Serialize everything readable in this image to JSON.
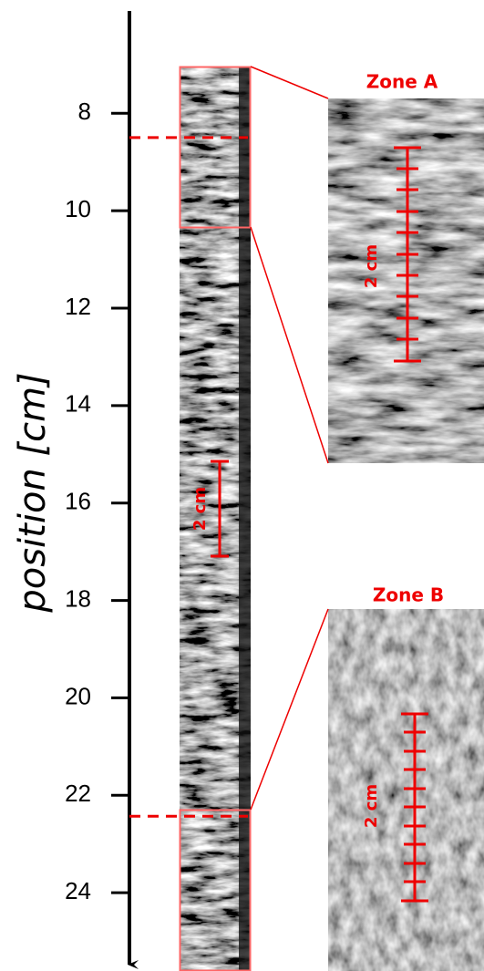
{
  "chart_data": {
    "type": "core",
    "ylabel": "position [cm]",
    "ylim": [
      5.9,
      25.55
    ],
    "yticks": [
      8,
      10,
      12,
      14,
      16,
      18,
      20,
      22,
      24
    ],
    "dashed_lines": [
      8.5,
      22.43
    ],
    "zones": [
      "Zone A",
      "Zone B"
    ],
    "scale_label": "2 cm"
  }
}
